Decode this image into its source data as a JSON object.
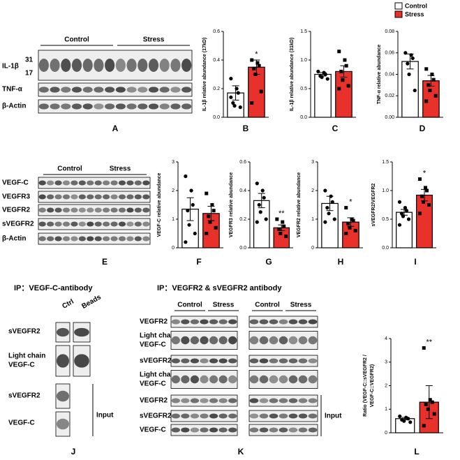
{
  "legend": [
    {
      "name": "Control",
      "color": "#ffffff"
    },
    {
      "name": "Stress",
      "color": "#e8312a"
    }
  ],
  "chart_data": [
    {
      "type": "bar",
      "panel": "B",
      "ylabel": "IL-1β relative abundance (17kD)",
      "ylim": [
        0,
        0.6
      ],
      "yticks": [
        {
          "value": 0,
          "label": "0.0"
        },
        0.2,
        0.4,
        0.6
      ],
      "values": [
        0.17,
        0.35
      ],
      "errors": [
        0.05,
        0.05
      ],
      "points": [
        [
          0.27,
          0.2,
          0.17,
          0.1,
          0.08,
          0.07,
          0.14
        ],
        [
          0.4,
          0.38,
          0.36,
          0.34,
          0.3,
          0.18,
          0.1
        ]
      ],
      "significance": "*"
    },
    {
      "type": "bar",
      "panel": "C",
      "ylabel": "IL-1β relative abundance (31kD)",
      "ylim": [
        0,
        1.5
      ],
      "yticks": [
        {
          "value": 0,
          "label": "0.0"
        },
        0.5,
        {
          "value": 1,
          "label": "1.0"
        },
        1.5
      ],
      "values": [
        0.75,
        0.8
      ],
      "errors": [
        0.03,
        0.1
      ],
      "points": [
        [
          0.8,
          0.78,
          0.75,
          0.72,
          0.7,
          0.67
        ],
        [
          1.15,
          1.0,
          0.9,
          0.8,
          0.65,
          0.55,
          0.5
        ]
      ]
    },
    {
      "type": "bar",
      "panel": "D",
      "ylabel": "TNF-α relative abundance",
      "ylim": [
        0,
        0.08
      ],
      "yticks": [
        {
          "value": 0,
          "label": "0.00"
        },
        0.02,
        0.04,
        0.06,
        0.08
      ],
      "values": [
        0.052,
        0.034
      ],
      "errors": [
        0.007,
        0.005
      ],
      "points": [
        [
          0.06,
          0.058,
          0.055,
          0.05,
          0.04,
          0.025
        ],
        [
          0.045,
          0.04,
          0.035,
          0.03,
          0.025,
          0.02,
          0.015
        ]
      ]
    },
    {
      "type": "bar",
      "panel": "F",
      "ylabel": "VEGF-C relative abundance",
      "ylim": [
        0,
        3
      ],
      "yticks": [
        0,
        1,
        2,
        3
      ],
      "values": [
        1.35,
        1.2
      ],
      "errors": [
        0.4,
        0.25
      ],
      "points": [
        [
          2.5,
          2.0,
          1.5,
          1.3,
          0.8,
          0.5,
          0.2
        ],
        [
          1.9,
          1.5,
          1.3,
          1.1,
          0.9,
          0.7,
          0.5
        ]
      ]
    },
    {
      "type": "bar",
      "panel": "G",
      "ylabel": "VEGFR3 relative abundance",
      "ylim": [
        0,
        0.6
      ],
      "yticks": [
        {
          "value": 0,
          "label": "0.0"
        },
        0.2,
        0.4,
        0.6
      ],
      "values": [
        0.33,
        0.14
      ],
      "errors": [
        0.05,
        0.02
      ],
      "points": [
        [
          0.45,
          0.4,
          0.35,
          0.3,
          0.25,
          0.2,
          0.18
        ],
        [
          0.2,
          0.18,
          0.15,
          0.13,
          0.1,
          0.08
        ]
      ],
      "significance": "**"
    },
    {
      "type": "bar",
      "panel": "H",
      "ylabel": "VEGFR2 relative abundance",
      "ylim": [
        0,
        3
      ],
      "yticks": [
        0,
        1,
        2,
        3
      ],
      "values": [
        1.55,
        0.9
      ],
      "errors": [
        0.25,
        0.15
      ],
      "points": [
        [
          2.0,
          1.8,
          1.6,
          1.4,
          1.2,
          1.0,
          0.9
        ],
        [
          1.4,
          1.0,
          0.95,
          0.85,
          0.7,
          0.6,
          0.5
        ]
      ],
      "significance": "*"
    },
    {
      "type": "bar",
      "panel": "I",
      "ylabel": "sVEGFR2/VEGFR2",
      "ylim": [
        0,
        1.5
      ],
      "yticks": [
        {
          "value": 0,
          "label": "0.0"
        },
        0.5,
        {
          "value": 1,
          "label": "1.0"
        },
        1.5
      ],
      "values": [
        0.62,
        0.92
      ],
      "errors": [
        0.05,
        0.1
      ],
      "points": [
        [
          0.8,
          0.7,
          0.65,
          0.6,
          0.55,
          0.5,
          0.4
        ],
        [
          1.2,
          1.05,
          1.0,
          0.9,
          0.8,
          0.75,
          0.6
        ]
      ],
      "significance": "*"
    },
    {
      "type": "bar",
      "panel": "L",
      "ylabel": [
        "Ratio (VEGF-C::sVEGFR2 /",
        "VEGF-C::VEGFR2)"
      ],
      "ylim": [
        0,
        4
      ],
      "yticks": [
        0,
        1,
        2,
        3,
        4
      ],
      "values": [
        0.6,
        1.3
      ],
      "errors": [
        0.05,
        0.7
      ],
      "points": [
        [
          0.7,
          0.65,
          0.6,
          0.55,
          0.5,
          0.45
        ],
        [
          3.6,
          1.4,
          1.3,
          1.2,
          1.0,
          0.8,
          0.3
        ]
      ],
      "significance": "**"
    }
  ],
  "blots": {
    "A": {
      "panel": "A",
      "groups": [
        "Control",
        "Stress"
      ],
      "rows": [
        "IL-1β",
        "TNF-α",
        "β-Actin"
      ],
      "sizes": [
        "31",
        "17"
      ]
    },
    "E": {
      "panel": "E",
      "groups": [
        "Control",
        "Stress"
      ],
      "rows": [
        "VEGF-C",
        "VEGFR3",
        "VEGFR2",
        "sVEGFR2",
        "β-Actin"
      ]
    },
    "J": {
      "panel": "J",
      "title": "IP：VEGF-C-antibody",
      "lanes": [
        "Ctrl",
        "Beads"
      ],
      "rows": [
        [
          "sVEGFR2"
        ],
        [
          "Light chain",
          "VEGF-C"
        ],
        [
          "sVEGFR2"
        ],
        [
          "VEGF-C"
        ]
      ],
      "input": "Input"
    },
    "K": {
      "panel": "K",
      "title": "IP：VEGFR2 & sVEGFR2 antibody",
      "groups": [
        "Control",
        "Stress",
        "Control",
        "Stress"
      ],
      "rows": [
        [
          "VEGFR2"
        ],
        [
          "Light chain",
          "VEGF-C"
        ],
        [
          "sVEGFR2"
        ],
        [
          "Light chain",
          "VEGF-C"
        ],
        [
          "VEGFR2"
        ],
        [
          "sVEGFR2"
        ],
        [
          "VEGF-C"
        ]
      ],
      "input": "Input"
    }
  }
}
